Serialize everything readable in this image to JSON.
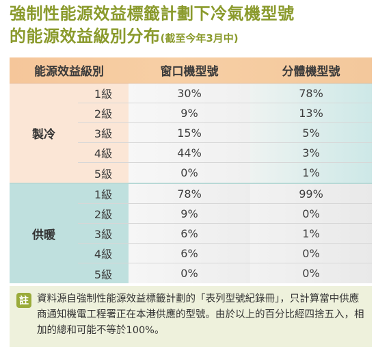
{
  "title": {
    "line1": "強制性能源效益標籤計劃下冷氣機型號",
    "line2": "的能源效益級別分布",
    "sub": "(截至今年3月中)"
  },
  "table": {
    "headers": [
      "能源效益級別",
      "窗口機型號",
      "分體機型號"
    ],
    "groups": [
      {
        "label": "製冷",
        "rows": [
          {
            "grade": "1級",
            "window": "30%",
            "split": "78%"
          },
          {
            "grade": "2級",
            "window": "9%",
            "split": "13%"
          },
          {
            "grade": "3級",
            "window": "15%",
            "split": "5%"
          },
          {
            "grade": "4級",
            "window": "44%",
            "split": "3%"
          },
          {
            "grade": "5級",
            "window": "0%",
            "split": "1%"
          }
        ]
      },
      {
        "label": "供暖",
        "rows": [
          {
            "grade": "1級",
            "window": "78%",
            "split": "99%"
          },
          {
            "grade": "2級",
            "window": "9%",
            "split": "0%"
          },
          {
            "grade": "3級",
            "window": "6%",
            "split": "1%"
          },
          {
            "grade": "4級",
            "window": "6%",
            "split": "0%"
          },
          {
            "grade": "5級",
            "window": "0%",
            "split": "0%"
          }
        ]
      }
    ]
  },
  "note": {
    "badge": "註",
    "text": "資料源自強制性能源效益標籤計劃的「表列型號紀錄冊」，只計算當中供應商通知機電工程署正在本港供應的型號。由於以上的百分比經四捨五入，相加的總和可能不等於100%。"
  }
}
